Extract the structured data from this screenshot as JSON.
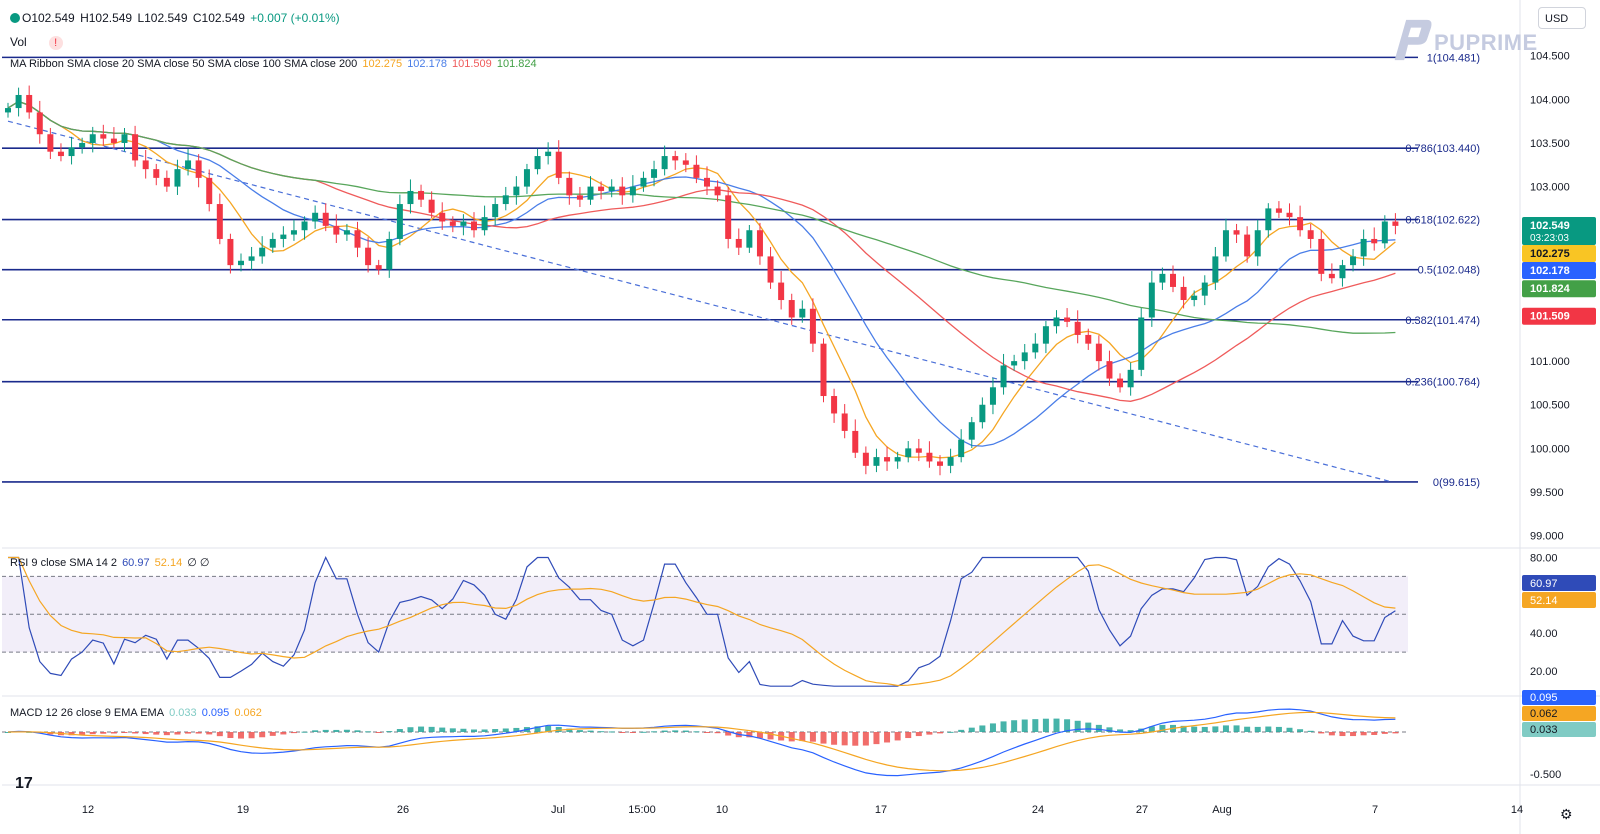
{
  "header": {
    "ohlc": {
      "o": "O102.549",
      "h": "H102.549",
      "l": "L102.549",
      "c": "C102.549",
      "change": "+0.007 (+0.01%)"
    },
    "vol_label": "Vol",
    "ma_ribbon": {
      "label": "MA Ribbon SMA close 20 SMA close 50 SMA close 100 SMA close 200",
      "v20": "102.275",
      "v50": "102.178",
      "v100": "101.509",
      "v200": "101.824"
    },
    "currency": "USD",
    "brand": "PUPRIME"
  },
  "rsi_legend": {
    "label": "RSI 9 close SMA 14 2",
    "v1": "60.97",
    "v2": "52.14",
    "extra": "∅ ∅"
  },
  "macd_legend": {
    "label": "MACD 12 26 close 9 EMA EMA",
    "hist": "0.033",
    "macd": "0.095",
    "signal": "0.062"
  },
  "chart_data": [
    {
      "type": "candlestick",
      "yaxis_ticks": [
        "104.500",
        "104.000",
        "103.500",
        "103.000",
        "102.500",
        "102.000",
        "101.500",
        "101.000",
        "100.500",
        "100.000",
        "99.500",
        "99.000"
      ],
      "ylim": [
        98.95,
        104.68
      ],
      "xaxis_ticks": [
        "12",
        "19",
        "26",
        "Jul",
        "15:00",
        "10",
        "17",
        "24",
        "27",
        "Aug",
        "7",
        "14"
      ],
      "fib_levels": [
        {
          "label": "1(104.481)",
          "value": 104.481
        },
        {
          "label": "0.786(103.440)",
          "value": 103.44
        },
        {
          "label": "0.618(102.622)",
          "value": 102.622
        },
        {
          "label": "0.5(102.048)",
          "value": 102.048
        },
        {
          "label": "0.382(101.474)",
          "value": 101.474
        },
        {
          "label": "0.236(100.764)",
          "value": 100.764
        },
        {
          "label": "0(99.615)",
          "value": 99.615
        }
      ],
      "trendline": [
        [
          0,
          103.75
        ],
        [
          160,
          99.615
        ]
      ],
      "price_badges": [
        {
          "label": "102.549",
          "sub": "03:23:03",
          "value": 102.549,
          "color": "#089981"
        },
        {
          "label": "102.275",
          "value": 102.275,
          "color": "#f9c524"
        },
        {
          "label": "102.178",
          "value": 102.178,
          "color": "#2962ff"
        },
        {
          "label": "101.824",
          "value": 101.824,
          "color": "#43a047"
        },
        {
          "label": "101.509",
          "value": 101.509,
          "color": "#f23645"
        }
      ],
      "series_colors": {
        "sma20": "#f5a623",
        "sma50": "#4a7ee8",
        "sma100": "#ef5b5b",
        "sma200": "#58a65c",
        "up": "#089981",
        "down": "#f23645",
        "fib": "#1a2a8c"
      },
      "closes": [
        103.9,
        104.05,
        103.85,
        103.6,
        103.4,
        103.35,
        103.45,
        103.5,
        103.6,
        103.55,
        103.5,
        103.6,
        103.3,
        103.2,
        103.1,
        103.0,
        103.2,
        103.3,
        103.1,
        102.8,
        102.4,
        102.1,
        102.15,
        102.2,
        102.3,
        102.4,
        102.45,
        102.5,
        102.6,
        102.7,
        102.55,
        102.45,
        102.5,
        102.3,
        102.1,
        102.05,
        102.4,
        102.8,
        102.95,
        102.85,
        102.7,
        102.6,
        102.55,
        102.6,
        102.5,
        102.65,
        102.8,
        102.9,
        103.0,
        103.2,
        103.35,
        103.4,
        103.1,
        102.9,
        102.85,
        103.0,
        102.95,
        103.0,
        102.9,
        103.0,
        103.1,
        103.2,
        103.35,
        103.3,
        103.25,
        103.1,
        103.0,
        102.9,
        102.4,
        102.3,
        102.5,
        102.2,
        101.9,
        101.7,
        101.5,
        101.6,
        101.2,
        100.6,
        100.4,
        100.2,
        99.95,
        99.8,
        99.9,
        99.85,
        99.9,
        100.0,
        99.95,
        99.85,
        99.8,
        99.9,
        100.1,
        100.3,
        100.5,
        100.7,
        100.95,
        101.0,
        101.1,
        101.2,
        101.4,
        101.5,
        101.45,
        101.3,
        101.2,
        101.0,
        100.8,
        100.7,
        100.9,
        101.5,
        101.9,
        102.0,
        101.85,
        101.7,
        101.75,
        101.9,
        102.2,
        102.5,
        102.45,
        102.2,
        102.5,
        102.75,
        102.7,
        102.65,
        102.5,
        102.4,
        102.0,
        101.95,
        102.1,
        102.2,
        102.4,
        102.35,
        102.6,
        102.55
      ]
    },
    {
      "type": "line",
      "title": "RSI",
      "yaxis_ticks": [
        "80.00",
        "40.00",
        "20.00"
      ],
      "ylim": [
        10,
        85
      ],
      "bands": [
        70,
        50,
        30
      ],
      "series": [
        {
          "name": "RSI 9",
          "color": "#2f4bb8",
          "current": 60.97
        },
        {
          "name": "SMA 14",
          "color": "#f5a623",
          "current": 52.14
        }
      ]
    },
    {
      "type": "histogram+line",
      "title": "MACD",
      "yaxis_ticks": [
        "-0.500"
      ],
      "series": [
        {
          "name": "Histogram",
          "current": 0.033
        },
        {
          "name": "MACD",
          "color": "#2962ff",
          "current": 0.095
        },
        {
          "name": "Signal",
          "color": "#f5a623",
          "current": 0.062
        }
      ]
    }
  ]
}
